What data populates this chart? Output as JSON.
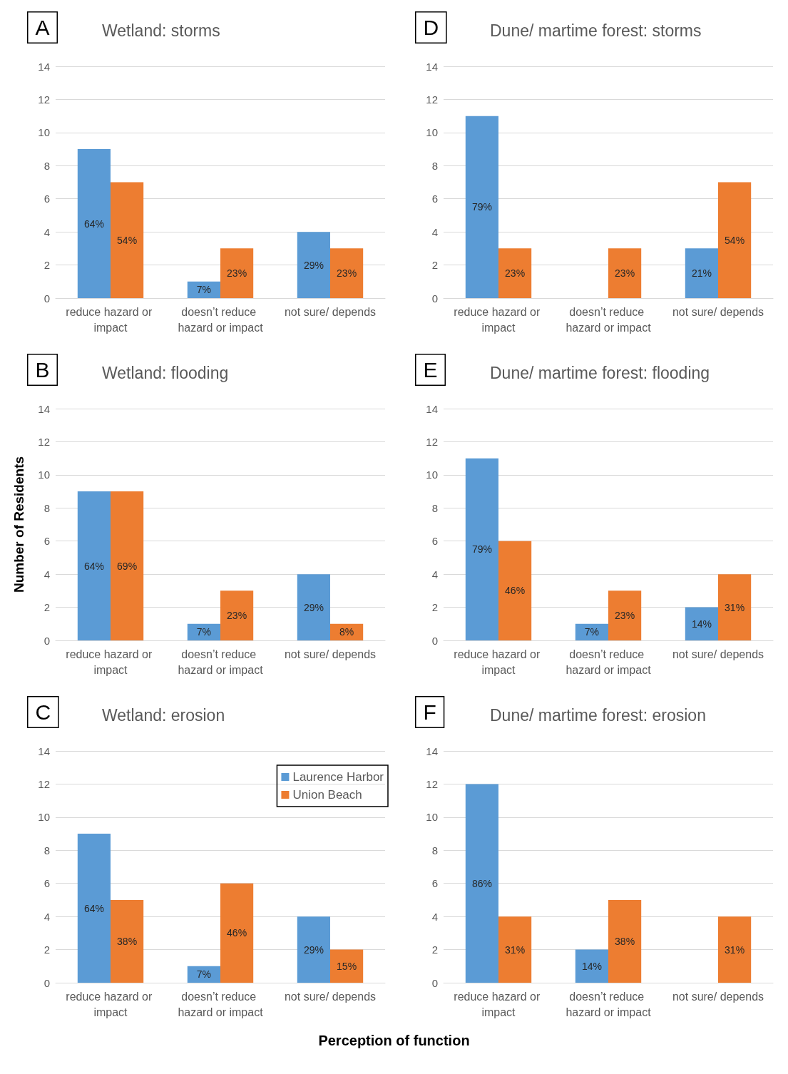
{
  "chart_data": [
    {
      "type": "bar",
      "title": "Wetland: storms",
      "categories": [
        "reduce hazard or impact",
        "doesn’t reduce hazard or impact",
        "not sure/ depends"
      ],
      "ylim": [
        0,
        14
      ],
      "yticks": [
        0,
        2,
        4,
        6,
        8,
        10,
        12,
        14
      ],
      "grid": "y",
      "legend": false,
      "series": [
        {
          "color": "#5b9bd5",
          "values": [
            9,
            1,
            4
          ]
        },
        {
          "color": "#ed7d31",
          "values": [
            7,
            3,
            3
          ]
        }
      ],
      "annotations": [
        "A",
        {
          "text": "64%",
          "x": "reduce hazard or impact",
          "y": 4.5
        },
        {
          "text": "7%",
          "x": "doesn’t reduce hazard or impact",
          "y": 0.5
        },
        {
          "text": "29%",
          "x": "not sure/ depends",
          "y": 2
        },
        {
          "text": "54%",
          "x": "reduce hazard or impact",
          "y": 3.5
        },
        {
          "text": "23%",
          "x": "doesn’t reduce hazard or impact",
          "y": 1.5
        },
        {
          "text": "23%",
          "x": "not sure/ depends",
          "y": 1.5
        }
      ]
    },
    {
      "type": "bar",
      "title": "Dune/ martime forest: storms",
      "categories": [
        "reduce hazard or impact",
        "doesn’t reduce hazard or impact",
        "not sure/ depends"
      ],
      "ylim": [
        0,
        14
      ],
      "yticks": [
        0,
        2,
        4,
        6,
        8,
        10,
        12,
        14
      ],
      "grid": "y",
      "legend": false,
      "series": [
        {
          "color": "#5b9bd5",
          "values": [
            11,
            0,
            3
          ]
        },
        {
          "color": "#ed7d31",
          "values": [
            3,
            3,
            7
          ]
        }
      ],
      "annotations": [
        "D",
        {
          "text": "79%",
          "x": "reduce hazard or impact",
          "y": 5.5
        },
        {
          "text": "21%",
          "x": "not sure/ depends",
          "y": 1.5
        },
        {
          "text": "23%",
          "x": "reduce hazard or impact",
          "y": 1.5
        },
        {
          "text": "23%",
          "x": "doesn’t reduce hazard or impact",
          "y": 1.5
        },
        {
          "text": "54%",
          "x": "not sure/ depends",
          "y": 3.5
        }
      ]
    },
    {
      "type": "bar",
      "title": "Wetland: flooding",
      "ylabel": "Number of Residents",
      "categories": [
        "reduce hazard or impact",
        "doesn’t reduce hazard or impact",
        "not sure/ depends"
      ],
      "ylim": [
        0,
        14
      ],
      "yticks": [
        0,
        2,
        4,
        6,
        8,
        10,
        12,
        14
      ],
      "grid": "y",
      "legend": false,
      "series": [
        {
          "color": "#5b9bd5",
          "values": [
            9,
            1,
            4
          ]
        },
        {
          "color": "#ed7d31",
          "values": [
            9,
            3,
            1
          ]
        }
      ],
      "annotations": [
        "B",
        {
          "text": "64%",
          "x": "reduce hazard or impact",
          "y": 4.5
        },
        {
          "text": "7%",
          "x": "doesn’t reduce hazard or impact",
          "y": 0.5
        },
        {
          "text": "29%",
          "x": "not sure/ depends",
          "y": 2
        },
        {
          "text": "69%",
          "x": "reduce hazard or impact",
          "y": 4.5
        },
        {
          "text": "23%",
          "x": "doesn’t reduce hazard or impact",
          "y": 1.5
        },
        {
          "text": "8%",
          "x": "not sure/ depends",
          "y": 0.5
        }
      ]
    },
    {
      "type": "bar",
      "title": "Dune/ martime forest: flooding",
      "categories": [
        "reduce hazard or impact",
        "doesn’t reduce hazard or impact",
        "not sure/ depends"
      ],
      "ylim": [
        0,
        14
      ],
      "yticks": [
        0,
        2,
        4,
        6,
        8,
        10,
        12,
        14
      ],
      "grid": "y",
      "legend": false,
      "series": [
        {
          "color": "#5b9bd5",
          "values": [
            11,
            1,
            2
          ]
        },
        {
          "color": "#ed7d31",
          "values": [
            6,
            3,
            4
          ]
        }
      ],
      "annotations": [
        "E",
        {
          "text": "79%",
          "x": "reduce hazard or impact",
          "y": 5.5
        },
        {
          "text": "7%",
          "x": "doesn’t reduce hazard or impact",
          "y": 0.5
        },
        {
          "text": "14%",
          "x": "not sure/ depends",
          "y": 1
        },
        {
          "text": "46%",
          "x": "reduce hazard or impact",
          "y": 3
        },
        {
          "text": "23%",
          "x": "doesn’t reduce hazard or impact",
          "y": 1.5
        },
        {
          "text": "31%",
          "x": "not sure/ depends",
          "y": 2
        }
      ]
    },
    {
      "type": "bar",
      "title": "Wetland: erosion",
      "xlabel": "Perception of function",
      "categories": [
        "reduce hazard or impact",
        "doesn’t reduce hazard or impact",
        "not sure/ depends"
      ],
      "ylim": [
        0,
        14
      ],
      "yticks": [
        0,
        2,
        4,
        6,
        8,
        10,
        12,
        14
      ],
      "grid": "y",
      "legend": "top right",
      "series": [
        {
          "name": "Laurence Harbor",
          "color": "#5b9bd5",
          "values": [
            9,
            1,
            4
          ]
        },
        {
          "name": "Union Beach",
          "color": "#ed7d31",
          "values": [
            5,
            6,
            2
          ]
        }
      ],
      "annotations": [
        "C",
        {
          "text": "64%",
          "x": "reduce hazard or impact",
          "y": 4.5
        },
        {
          "text": "7%",
          "x": "doesn’t reduce hazard or impact",
          "y": 0.5
        },
        {
          "text": "29%",
          "x": "not sure/ depends",
          "y": 2
        },
        {
          "text": "38%",
          "x": "reduce hazard or impact",
          "y": 2.5
        },
        {
          "text": "46%",
          "x": "doesn’t reduce hazard or impact",
          "y": 3
        },
        {
          "text": "15%",
          "x": "not sure/ depends",
          "y": 1
        }
      ]
    },
    {
      "type": "bar",
      "title": "Dune/ martime forest: erosion",
      "categories": [
        "reduce hazard or impact",
        "doesn’t reduce hazard or impact",
        "not sure/ depends"
      ],
      "ylim": [
        0,
        14
      ],
      "yticks": [
        0,
        2,
        4,
        6,
        8,
        10,
        12,
        14
      ],
      "grid": "y",
      "legend": false,
      "series": [
        {
          "color": "#5b9bd5",
          "values": [
            12,
            2,
            0
          ]
        },
        {
          "color": "#ed7d31",
          "values": [
            4,
            5,
            4
          ]
        }
      ],
      "annotations": [
        "F",
        {
          "text": "86%",
          "x": "reduce hazard or impact",
          "y": 6
        },
        {
          "text": "14%",
          "x": "doesn’t reduce hazard or impact",
          "y": 1
        },
        {
          "text": "31%",
          "x": "reduce hazard or impact",
          "y": 2
        },
        {
          "text": "38%",
          "x": "doesn’t reduce hazard or impact",
          "y": 2.5
        },
        {
          "text": "31%",
          "x": "not sure/ depends",
          "y": 2
        }
      ]
    }
  ]
}
